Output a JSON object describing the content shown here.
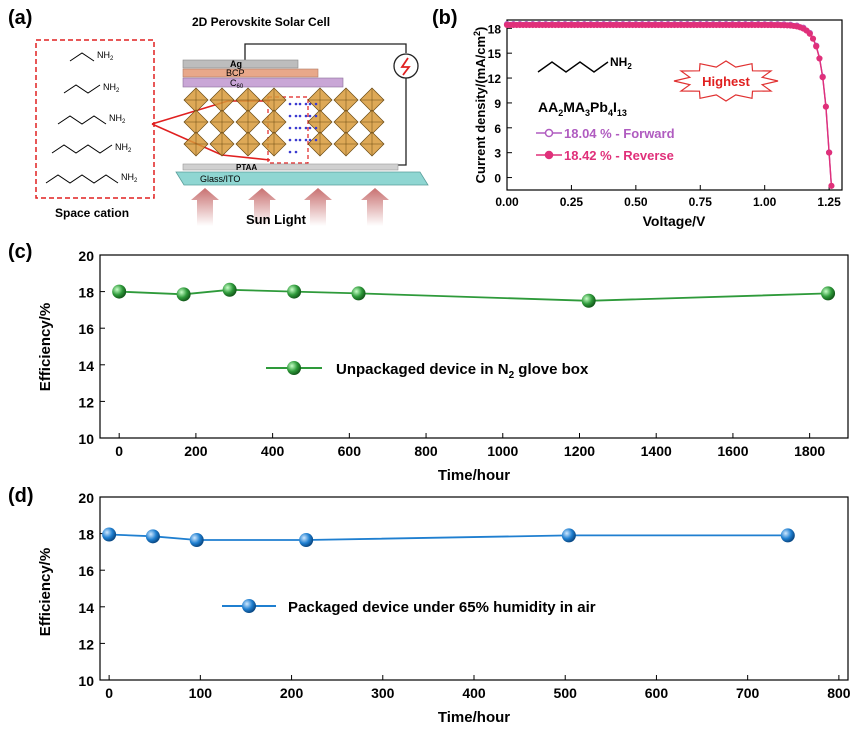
{
  "panels": {
    "a": {
      "label": "(a)",
      "title": "2D Perovskite Solar Cell",
      "cation_box_label": "Space cation",
      "amine": "NH",
      "amine_sub": "2",
      "layers": [
        "Ag",
        "BCP",
        "C",
        "PTAA",
        "Glass/ITO"
      ],
      "c60_sub": "60",
      "sun_label": "Sun Light",
      "colors": {
        "glass": "#8fd6d2",
        "ag": "#bdbdbd",
        "bcp": "#e8a88a",
        "c60": "#c9a6d6",
        "red": "#e02020",
        "arrow": "#c88080"
      }
    },
    "b": {
      "label": "(b)"
    },
    "c": {
      "label": "(c)"
    },
    "d": {
      "label": "(d)"
    }
  },
  "chart_data": [
    {
      "type": "line",
      "panel": "b",
      "xlabel": "Voltage/V",
      "ylabel": "Current density/(mA/cm",
      "ylabel_sup": "2",
      "ylabel_end": ")",
      "xlim": [
        0,
        1.3
      ],
      "ylim": [
        -1.5,
        19
      ],
      "xticks": [
        "0.00",
        "0.25",
        "0.50",
        "0.75",
        "1.00",
        "1.25"
      ],
      "yticks": [
        "0",
        "3",
        "6",
        "9",
        "12",
        "15",
        "18"
      ],
      "molecule_amine": "NH",
      "molecule_amine_sub": "2",
      "formula_parts": [
        "AA",
        "2",
        "MA",
        "3",
        "Pb",
        "4",
        "I",
        "13"
      ],
      "annotation": "Highest",
      "series": [
        {
          "name": "18.04 % - Forward",
          "color": "#b05cc0",
          "jsc": 18.5,
          "voc": 1.255
        },
        {
          "name": "18.42 % - Reverse",
          "color": "#e0307a",
          "jsc": 18.4,
          "voc": 1.255
        }
      ]
    },
    {
      "type": "line",
      "panel": "c",
      "xlabel": "Time/hour",
      "ylabel": "Efficiency/%",
      "xlim": [
        -50,
        1900
      ],
      "ylim": [
        10,
        20
      ],
      "xticks": [
        "0",
        "200",
        "400",
        "600",
        "800",
        "1000",
        "1200",
        "1400",
        "1600",
        "1800"
      ],
      "yticks": [
        "10",
        "12",
        "14",
        "16",
        "18",
        "20"
      ],
      "color": "#2e9a3a",
      "series": [
        {
          "name": "Unpackaged device in N",
          "name_sub": "2",
          "name_end": " glove box",
          "x": [
            0,
            168,
            288,
            456,
            624,
            1224,
            1848
          ],
          "values": [
            18.0,
            17.85,
            18.1,
            18.0,
            17.9,
            17.5,
            17.9
          ]
        }
      ]
    },
    {
      "type": "line",
      "panel": "d",
      "xlabel": "Time/hour",
      "ylabel": "Efficiency/%",
      "xlim": [
        -10,
        810
      ],
      "ylim": [
        10,
        20
      ],
      "xticks": [
        "0",
        "100",
        "200",
        "300",
        "400",
        "500",
        "600",
        "700",
        "800"
      ],
      "yticks": [
        "10",
        "12",
        "14",
        "16",
        "18",
        "20"
      ],
      "color": "#1f7fd0",
      "series": [
        {
          "name": "Packaged device under 65% humidity in air",
          "x": [
            0,
            48,
            96,
            216,
            504,
            744
          ],
          "values": [
            17.95,
            17.85,
            17.65,
            17.65,
            17.9,
            17.9
          ]
        }
      ]
    }
  ]
}
